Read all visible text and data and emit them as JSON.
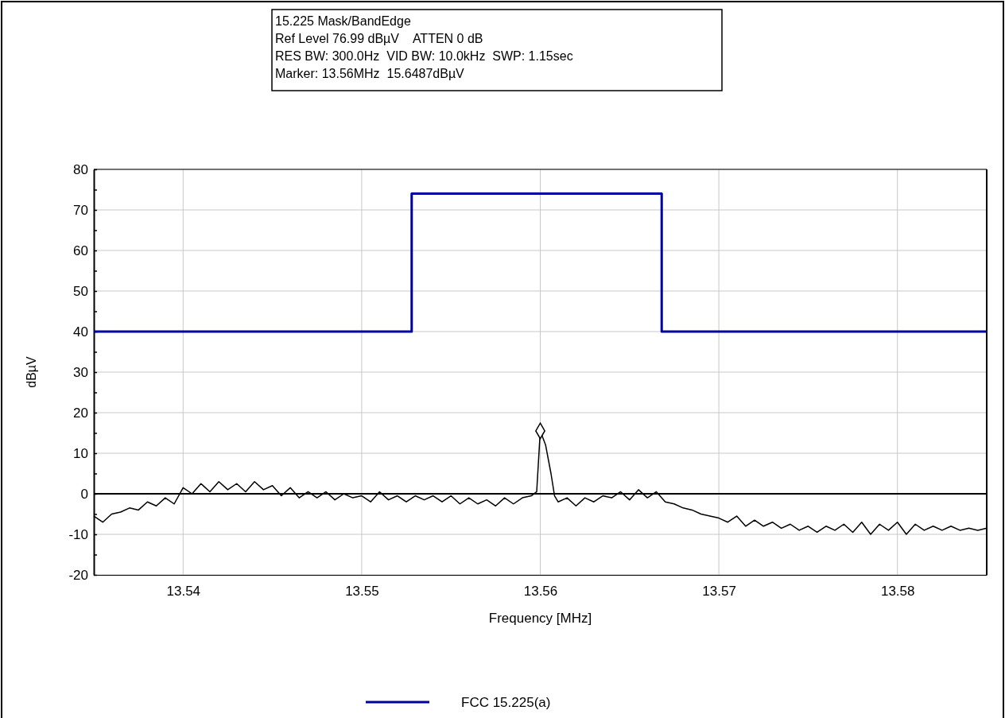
{
  "chart_data": {
    "type": "line",
    "title": "15.225 Mask/BandEdge",
    "annotations": [
      "Ref Level 76.99 dBµV    ATTEN 0 dB",
      "RES BW: 300.0Hz  VID BW: 10.0kHz  SWP: 1.15sec",
      "Marker: 13.56MHz  15.6487dBµV"
    ],
    "xlabel": "Frequency [MHz]",
    "ylabel": "dBµV",
    "xlim": [
      13.535,
      13.585
    ],
    "xticks": [
      13.54,
      13.55,
      13.56,
      13.57,
      13.58
    ],
    "ylim": [
      -20,
      80
    ],
    "yticks": [
      -20,
      {
        "value": -15,
        "label": null
      },
      -10,
      {
        "value": -5,
        "label": null
      },
      0,
      {
        "value": 5,
        "label": null
      },
      10,
      {
        "value": 15,
        "label": null
      },
      20,
      {
        "value": 25,
        "label": null
      },
      30,
      {
        "value": 35,
        "label": null
      },
      40,
      {
        "value": 45,
        "label": null
      },
      50,
      {
        "value": 55,
        "label": null
      },
      60,
      {
        "value": 65,
        "label": null
      },
      70,
      {
        "value": 75,
        "label": null
      },
      80
    ],
    "grid": true,
    "legend": "bottom",
    "line_style": "solid",
    "ref_lines": [
      {
        "axis": "y",
        "value": 0,
        "color": "#000000"
      }
    ],
    "series": [
      {
        "name": "FCC 15.225(a)",
        "color": "#0000a0",
        "x": [
          13.535,
          13.5528,
          13.5528,
          13.5668,
          13.5668,
          13.585
        ],
        "values": [
          40,
          40,
          74,
          74,
          40,
          40
        ]
      },
      {
        "color": "#000000",
        "x": [
          13.535,
          13.5355,
          13.536,
          13.5365,
          13.537,
          13.5375,
          13.538,
          13.5385,
          13.539,
          13.5395,
          13.54,
          13.5405,
          13.541,
          13.5415,
          13.542,
          13.5425,
          13.543,
          13.5435,
          13.544,
          13.5445,
          13.545,
          13.5455,
          13.546,
          13.5465,
          13.547,
          13.5475,
          13.548,
          13.5485,
          13.549,
          13.5495,
          13.55,
          13.5505,
          13.551,
          13.5515,
          13.552,
          13.5525,
          13.553,
          13.5535,
          13.554,
          13.5545,
          13.555,
          13.5555,
          13.556,
          13.5565,
          13.557,
          13.5575,
          13.558,
          13.5585,
          13.559,
          13.5595,
          13.5598,
          13.56,
          13.5603,
          13.5606,
          13.5608,
          13.561,
          13.5615,
          13.562,
          13.5625,
          13.563,
          13.5635,
          13.564,
          13.5645,
          13.565,
          13.5655,
          13.566,
          13.5665,
          13.567,
          13.5675,
          13.568,
          13.5685,
          13.569,
          13.5695,
          13.57,
          13.5705,
          13.571,
          13.5715,
          13.572,
          13.5725,
          13.573,
          13.5735,
          13.574,
          13.5745,
          13.575,
          13.5755,
          13.576,
          13.5765,
          13.577,
          13.5775,
          13.578,
          13.5785,
          13.579,
          13.5795,
          13.58,
          13.5805,
          13.581,
          13.5815,
          13.582,
          13.5825,
          13.583,
          13.5835,
          13.584,
          13.5845,
          13.585
        ],
        "values": [
          -5.5,
          -7,
          -5,
          -4.5,
          -3.5,
          -4,
          -2,
          -3,
          -1,
          -2.5,
          1.5,
          0,
          2.5,
          0.5,
          3,
          1,
          2.5,
          0.5,
          3,
          1,
          2,
          -0.5,
          1.5,
          -1,
          0.5,
          -1,
          0.5,
          -1.5,
          0,
          -1,
          -0.5,
          -2,
          0.5,
          -1.5,
          -0.5,
          -2,
          -0.5,
          -1.5,
          -0.5,
          -2,
          -0.5,
          -2.5,
          -1,
          -2.5,
          -1.5,
          -3,
          -1,
          -2.5,
          -1,
          -0.5,
          0.5,
          15.5,
          12,
          5,
          -0.5,
          -2,
          -1,
          -3,
          -1,
          -2,
          -0.5,
          -1,
          0.5,
          -1.5,
          1,
          -1,
          0.5,
          -2,
          -2.5,
          -3.5,
          -4,
          -5,
          -5.5,
          -6,
          -7,
          -5.5,
          -8,
          -6.5,
          -8,
          -7,
          -8.5,
          -7.5,
          -9,
          -8,
          -9.5,
          -8,
          -9,
          -7.5,
          -9.5,
          -7,
          -10,
          -7.5,
          -9,
          -7,
          -10,
          -7.5,
          -9,
          -8,
          -9,
          -8,
          -9,
          -8.5,
          -9,
          -8.5
        ]
      },
      {
        "type": "scatter",
        "marker": "diamond",
        "color": "#000000",
        "x": [
          13.56
        ],
        "values": [
          15.5
        ]
      }
    ]
  }
}
